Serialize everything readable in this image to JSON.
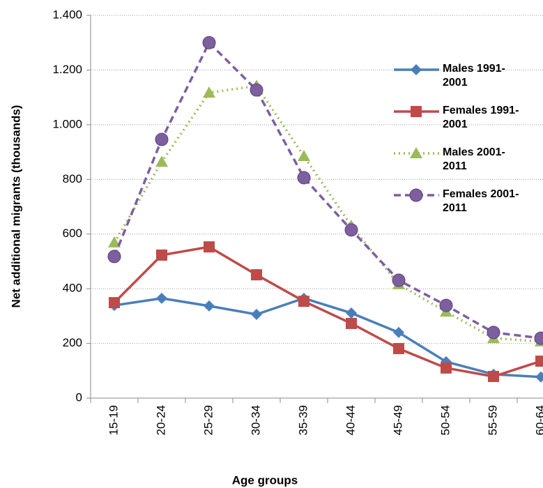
{
  "chart_data": {
    "type": "line",
    "x_label": "Age groups",
    "y_label": "Net additional migrants (thousands)",
    "categories": [
      "15-19",
      "20-24",
      "25-29",
      "30-34",
      "35-39",
      "40-44",
      "45-49",
      "50-54",
      "55-59",
      "60-64"
    ],
    "series": [
      {
        "name": "Males 1991-2001",
        "color": "#4a7ebb",
        "marker": "diamond",
        "dash": "solid",
        "values": [
          339,
          365,
          337,
          306,
          365,
          311,
          240,
          133,
          87,
          77
        ]
      },
      {
        "name": "Females 1991-2001",
        "color": "#be4b48",
        "marker": "square",
        "dash": "solid",
        "values": [
          349,
          523,
          553,
          451,
          354,
          273,
          181,
          110,
          79,
          135
        ]
      },
      {
        "name": "Males 2001-2011",
        "color": "#9bbb59",
        "marker": "triangle",
        "dash": "dotted",
        "values": [
          569,
          864,
          1117,
          1142,
          885,
          630,
          416,
          316,
          219,
          207
        ]
      },
      {
        "name": "Females 2001-2011",
        "color": "#7d5fa0",
        "marker": "circle",
        "dash": "dashed",
        "values": [
          518,
          946,
          1300,
          1127,
          806,
          615,
          431,
          339,
          240,
          219
        ]
      }
    ],
    "ylim": [
      0,
      1400
    ],
    "yticks": [
      0,
      200,
      400,
      600,
      800,
      {
        "value": 1000,
        "label": "1.000"
      },
      {
        "value": 1200,
        "label": "1.200"
      },
      {
        "value": 1400,
        "label": "1.400"
      }
    ],
    "grid": true,
    "legend": "right"
  }
}
